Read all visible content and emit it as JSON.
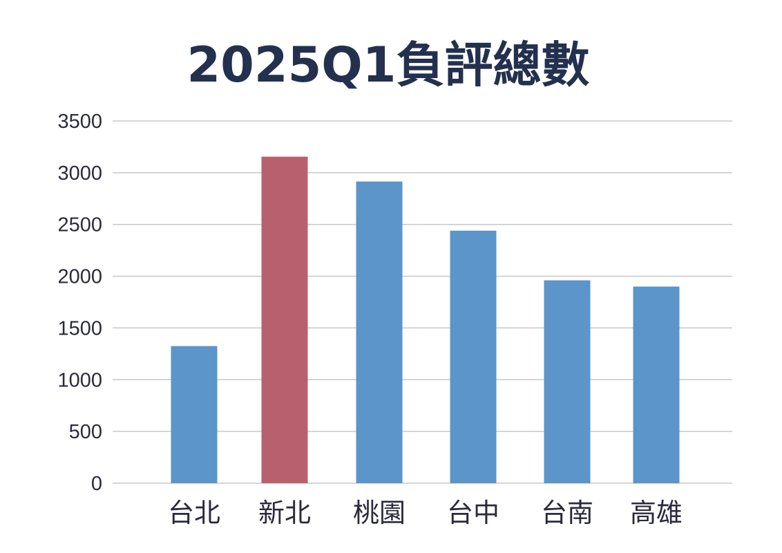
{
  "chart_data": {
    "type": "bar",
    "title": "2025Q1負評總數",
    "xlabel": "",
    "ylabel": "",
    "categories": [
      "台北",
      "新北",
      "桃園",
      "台中",
      "台南",
      "高雄"
    ],
    "values": [
      1325,
      3155,
      2915,
      2440,
      1960,
      1900
    ],
    "ylim": [
      0,
      3500
    ],
    "yticks": [
      0,
      500,
      1000,
      1500,
      2000,
      2500,
      3000,
      3500
    ],
    "yticks_text": [
      "0",
      "500",
      "1000",
      "1500",
      "2000",
      "2500",
      "3000",
      "3500"
    ],
    "grid": true,
    "legend": "none",
    "highlight_index": 1,
    "colors": {
      "bar": "#5b95c9",
      "highlight": "#b8606e",
      "grid": "#c8c8c8",
      "title": "#23304e",
      "text": "#2a2a3a"
    }
  }
}
